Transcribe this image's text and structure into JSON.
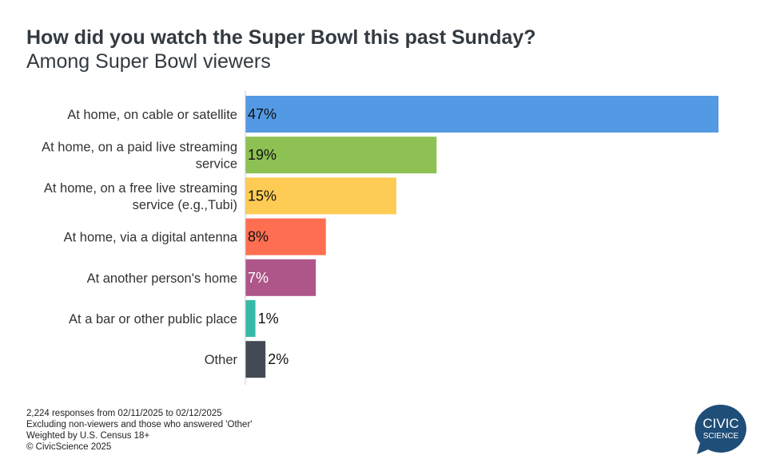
{
  "header": {
    "title": "How did you watch the Super Bowl this past Sunday?",
    "subtitle": "Among Super Bowl viewers"
  },
  "chart_data": {
    "type": "bar",
    "orientation": "horizontal",
    "categories": [
      [
        "At home, on cable or satellite"
      ],
      [
        "At home, on a paid live streaming",
        "service"
      ],
      [
        "At home, on a free live streaming",
        "service (e.g.,Tubi)"
      ],
      [
        "At home, via a digital antenna"
      ],
      [
        "At another person's home"
      ],
      [
        "At a bar or other public place"
      ],
      [
        "Other"
      ]
    ],
    "values": [
      47,
      19,
      15,
      8,
      7,
      1,
      2
    ],
    "data_labels": [
      "47%",
      "19%",
      "15%",
      "8%",
      "7%",
      "1%",
      "2%"
    ],
    "colors": [
      "#5499e3",
      "#8dc153",
      "#fecc54",
      "#fe6f52",
      "#ae5689",
      "#36baa8",
      "#434a54"
    ],
    "label_colors": [
      "#111",
      "#111",
      "#111",
      "#111",
      "#fff",
      "#111",
      "#111"
    ],
    "unit": "%",
    "grid": false
  },
  "footer": {
    "lines": [
      "2,224 responses from 02/11/2025 to 02/12/2025",
      "Excluding non-viewers and those who answered 'Other'",
      "Weighted by U.S. Census 18+",
      "© CivicScience 2025"
    ]
  },
  "logo": {
    "line1": "CIVIC",
    "line2": "SCIENCE",
    "color": "#1f4e79"
  }
}
